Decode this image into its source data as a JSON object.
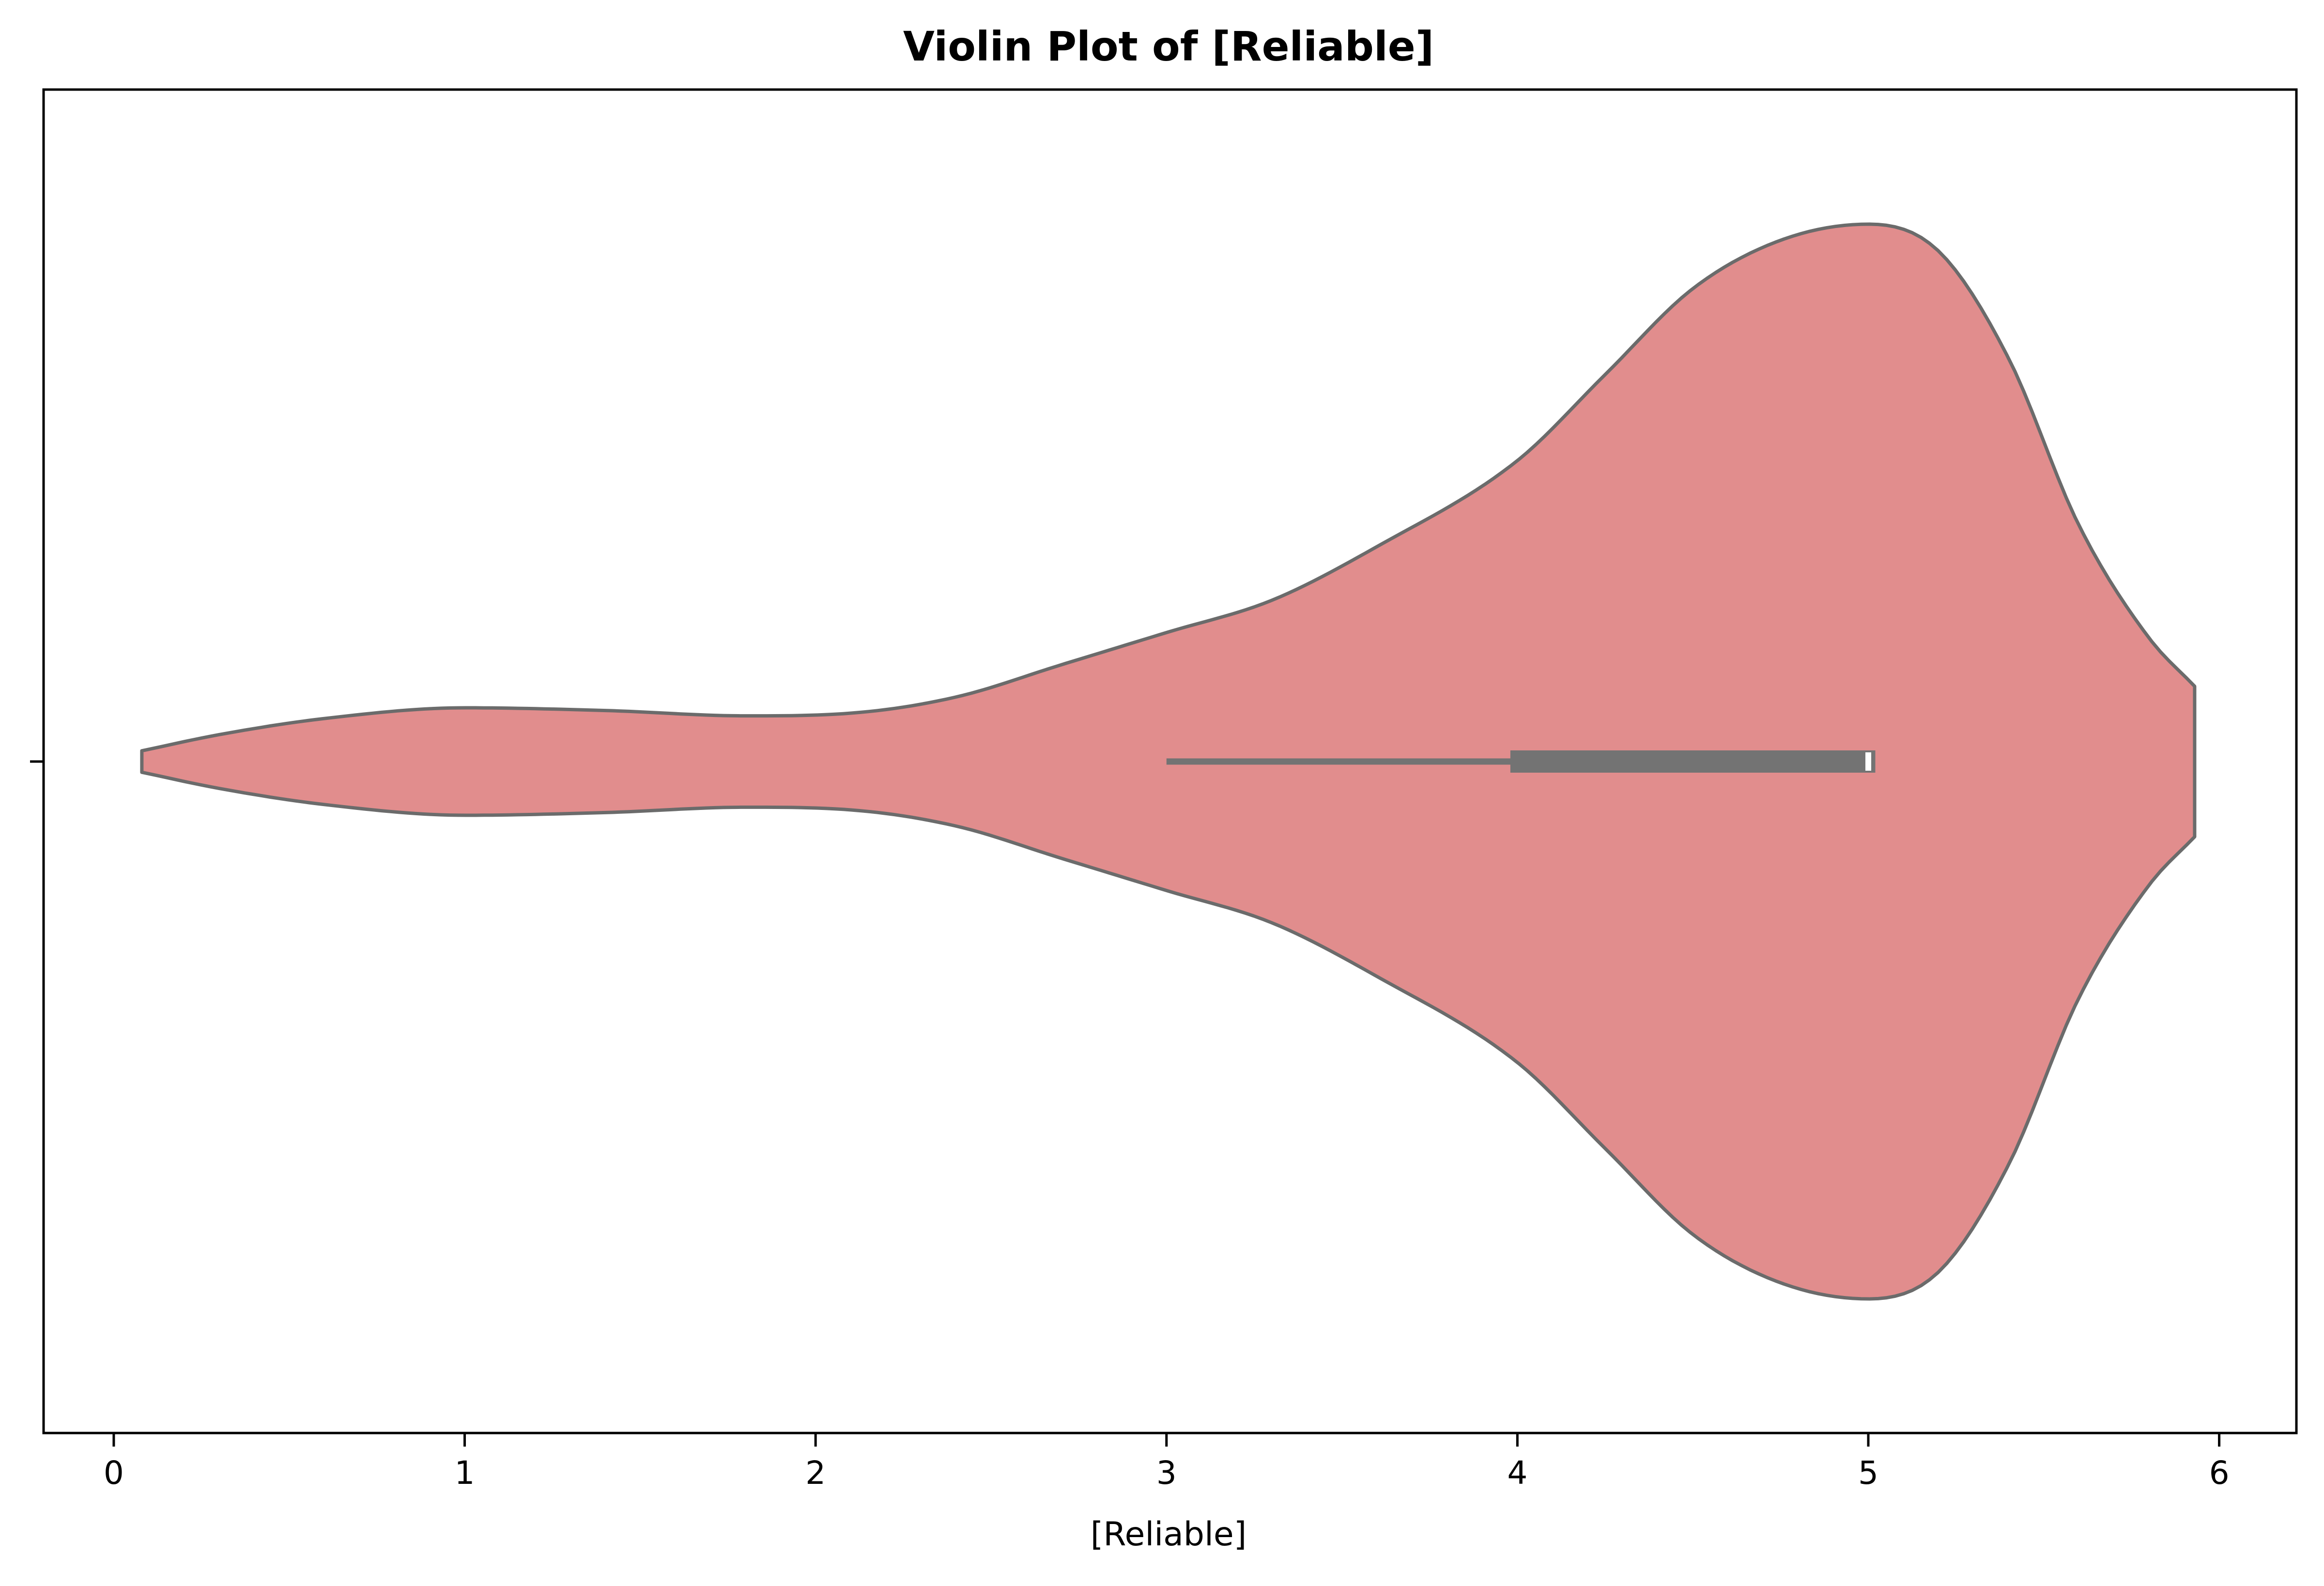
{
  "chart_data": {
    "type": "violin",
    "title": "Violin Plot of [Reliable]",
    "xlabel": "[Reliable]",
    "ylabel": "",
    "xlim": [
      -0.2,
      6.22
    ],
    "x_ticks": [
      0,
      1,
      2,
      3,
      4,
      5,
      6
    ],
    "x_tick_labels": [
      "0",
      "1",
      "2",
      "3",
      "4",
      "5",
      "6"
    ],
    "orientation": "horizontal",
    "grid": false,
    "colors": {
      "fill": "#e18d8d",
      "edge": "#6b6b6b",
      "box": "#737373",
      "median": "#ffffff"
    },
    "box": {
      "whisker_low": 3.0,
      "q1": 3.98,
      "median": 5.0,
      "q3": 5.02,
      "whisker_high": 5.02
    },
    "density_range": [
      0.08,
      5.93
    ],
    "density": [
      [
        0.08,
        0.02
      ],
      [
        0.3,
        0.05
      ],
      [
        0.6,
        0.08
      ],
      [
        1.0,
        0.1
      ],
      [
        1.4,
        0.095
      ],
      [
        1.8,
        0.085
      ],
      [
        2.1,
        0.09
      ],
      [
        2.4,
        0.12
      ],
      [
        2.7,
        0.18
      ],
      [
        3.0,
        0.24
      ],
      [
        3.3,
        0.3
      ],
      [
        3.6,
        0.4
      ],
      [
        4.0,
        0.56
      ],
      [
        4.25,
        0.72
      ],
      [
        4.5,
        0.88
      ],
      [
        4.75,
        0.97
      ],
      [
        5.0,
        1.0
      ],
      [
        5.2,
        0.95
      ],
      [
        5.4,
        0.75
      ],
      [
        5.6,
        0.44
      ],
      [
        5.8,
        0.23
      ],
      [
        5.93,
        0.14
      ]
    ]
  }
}
